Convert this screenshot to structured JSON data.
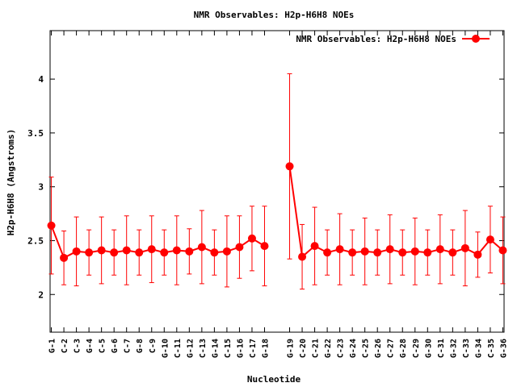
{
  "chart_data": {
    "type": "line",
    "title": "NMR Observables: H2p-H6H8 NOEs",
    "xlabel": "Nucleotide",
    "ylabel": "H2p-H6H8 (Angstroms)",
    "ylim": [
      1.65,
      4.45
    ],
    "yticks": [
      2,
      2.5,
      3,
      3.5,
      4
    ],
    "ytick_labels": [
      "2",
      "2.5",
      "3",
      "3.5",
      "4"
    ],
    "grid": false,
    "legend_position": "top-right",
    "categories": [
      "G-1",
      "C-2",
      "C-3",
      "G-4",
      "C-5",
      "G-6",
      "C-7",
      "G-8",
      "C-9",
      "G-10",
      "C-11",
      "G-12",
      "C-13",
      "G-14",
      "C-15",
      "G-16",
      "C-17",
      "G-18",
      "G-19",
      "C-20",
      "C-21",
      "G-22",
      "C-23",
      "G-24",
      "C-25",
      "G-26",
      "C-27",
      "G-28",
      "C-29",
      "G-30",
      "C-31",
      "G-32",
      "C-33",
      "G-34",
      "C-35",
      "G-36"
    ],
    "series": [
      {
        "name": "NMR Observables: H2p-H6H8 NOEs",
        "color": "#ff0000",
        "segments": [
          {
            "x": [
              1,
              2,
              3,
              4,
              5,
              6,
              7,
              8,
              9,
              10,
              11,
              12,
              13,
              14,
              15,
              16,
              17,
              18
            ],
            "y": [
              2.64,
              2.34,
              2.4,
              2.39,
              2.41,
              2.39,
              2.41,
              2.39,
              2.42,
              2.39,
              2.41,
              2.4,
              2.44,
              2.39,
              2.4,
              2.44,
              2.52,
              2.45
            ],
            "err": [
              0.45,
              0.25,
              0.32,
              0.21,
              0.31,
              0.21,
              0.32,
              0.21,
              0.31,
              0.21,
              0.32,
              0.21,
              0.34,
              0.21,
              0.33,
              0.29,
              0.3,
              0.37
            ]
          },
          {
            "x": [
              20,
              21,
              22,
              23,
              24,
              25,
              26,
              27,
              28,
              29,
              30,
              31,
              32,
              33,
              34,
              35,
              36,
              37
            ],
            "y": [
              3.19,
              2.35,
              2.45,
              2.39,
              2.42,
              2.39,
              2.4,
              2.39,
              2.42,
              2.39,
              2.4,
              2.39,
              2.42,
              2.39,
              2.43,
              2.37,
              2.51,
              2.41
            ],
            "err": [
              0.86,
              0.3,
              0.36,
              0.21,
              0.33,
              0.21,
              0.31,
              0.21,
              0.32,
              0.21,
              0.31,
              0.21,
              0.32,
              0.21,
              0.35,
              0.21,
              0.31,
              0.31
            ]
          }
        ]
      }
    ]
  }
}
